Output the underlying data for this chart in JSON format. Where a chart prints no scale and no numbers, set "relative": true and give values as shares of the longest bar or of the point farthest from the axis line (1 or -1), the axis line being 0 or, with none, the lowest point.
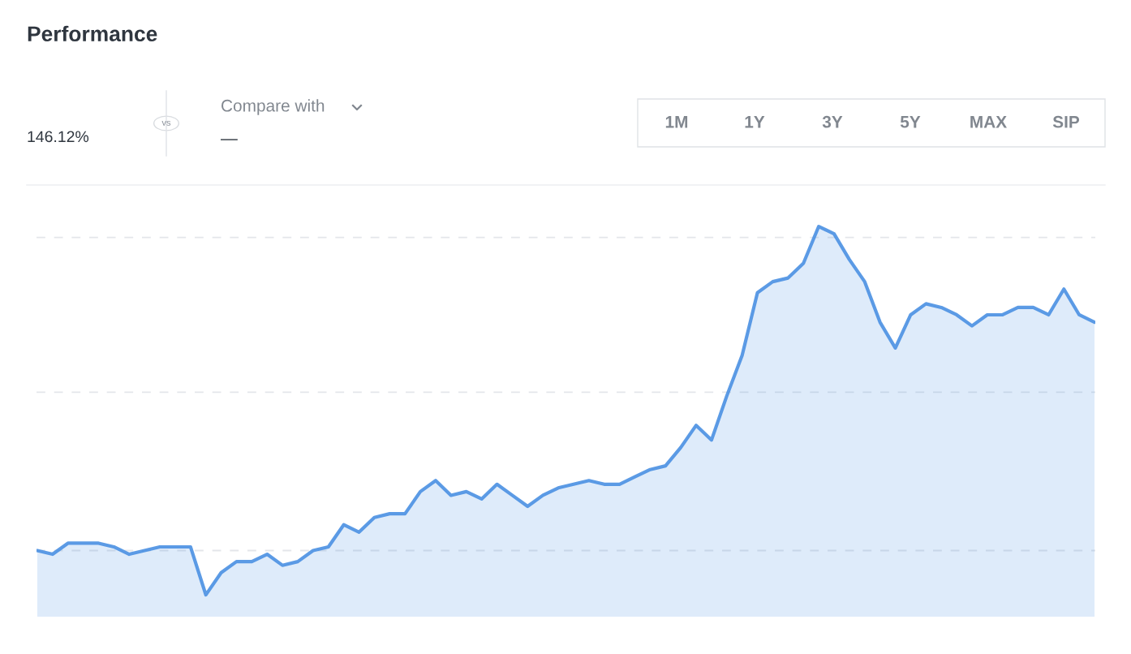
{
  "chart_data": {
    "type": "area",
    "title": "Performance",
    "relative": true,
    "categories": [
      null,
      null,
      null,
      null,
      null,
      null,
      null,
      null,
      null,
      null,
      null,
      null,
      null,
      null,
      null,
      null,
      null,
      null,
      null,
      null,
      null,
      null,
      null,
      null,
      null,
      null,
      null,
      null,
      null,
      null,
      null,
      null,
      null,
      null,
      null,
      null,
      null,
      null,
      null,
      null,
      null,
      null,
      null,
      null,
      null,
      null,
      null,
      null,
      null,
      null,
      null,
      null,
      null,
      null,
      null,
      null,
      null,
      null,
      null,
      null,
      null,
      null,
      null,
      null,
      null,
      null,
      null,
      null,
      null,
      null
    ],
    "series": [
      {
        "color": "#4a90e2",
        "values": [
          0.12,
          0.11,
          0.14,
          0.14,
          0.14,
          0.13,
          0.11,
          0.12,
          0.13,
          0.13,
          0.13,
          0,
          0.06,
          0.09,
          0.09,
          0.11,
          0.08,
          0.09,
          0.12,
          0.13,
          0.19,
          0.17,
          0.21,
          0.22,
          0.22,
          0.28,
          0.31,
          0.27,
          0.28,
          0.26,
          0.3,
          0.27,
          0.24,
          0.27,
          0.29,
          0.3,
          0.31,
          0.3,
          0.3,
          0.32,
          0.34,
          0.35,
          0.4,
          0.46,
          0.42,
          0.54,
          0.65,
          0.82,
          0.85,
          0.86,
          0.9,
          1,
          0.98,
          0.91,
          0.85,
          0.74,
          0.67,
          0.76,
          0.79,
          0.78,
          0.76,
          0.73,
          0.76,
          0.76,
          0.78,
          0.78,
          0.76,
          0.83,
          0.76,
          0.74
        ]
      }
    ],
    "ref_lines": [
      {
        "axis": "y",
        "value": 0.12,
        "color": "#e4e6ea",
        "line_style": "dashed"
      },
      {
        "axis": "y",
        "value": 0.55,
        "color": "#e4e6ea",
        "line_style": "dashed"
      },
      {
        "axis": "y",
        "value": 0.97,
        "color": "#e4e6ea",
        "line_style": "dashed"
      }
    ],
    "annotations": [
      "146.12%",
      "vs",
      "Compare with",
      "—",
      "1M",
      "1Y",
      "3Y",
      "5Y",
      "MAX",
      "SIP"
    ],
    "legend": false
  }
}
